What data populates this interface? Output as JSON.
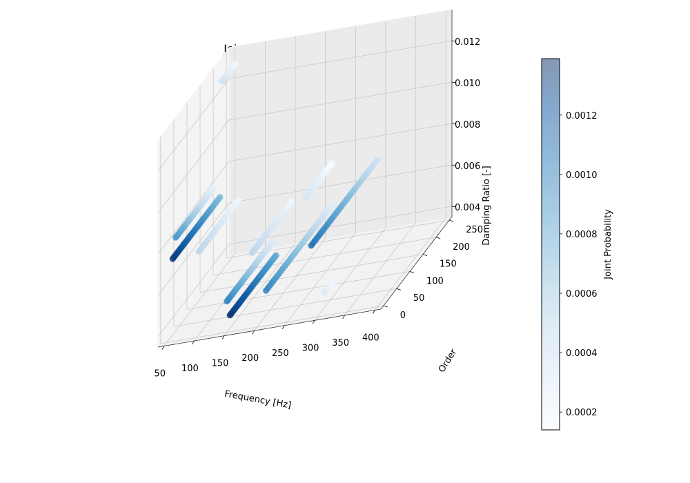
{
  "chart_data": {
    "type": "scatter",
    "title": "Joint Probability Distribution",
    "xlabel": "Frequency [Hz]",
    "ylabel": "Order",
    "zlabel": "Damping Ratio [-]",
    "xlim": [
      40,
      410
    ],
    "ylim": [
      -10,
      260
    ],
    "zlim": [
      0.0035,
      0.0135
    ],
    "xticks": [
      50,
      100,
      150,
      200,
      250,
      300,
      350,
      400
    ],
    "xtick_labels": [
      "50",
      "100",
      "150",
      "200",
      "250",
      "300",
      "350",
      "400"
    ],
    "yticks": [
      0,
      50,
      100,
      150,
      200,
      250
    ],
    "ytick_labels": [
      "0",
      "50",
      "100",
      "150",
      "200",
      "250"
    ],
    "zticks": [
      0.004,
      0.006,
      0.008,
      0.01,
      0.012
    ],
    "ztick_labels": [
      "0.004",
      "0.006",
      "0.008",
      "0.010",
      "0.012"
    ],
    "grid": true,
    "colormap": "Blues",
    "colorbar": {
      "label": "Joint Probability",
      "range": [
        0.00014,
        0.00139
      ],
      "ticks": [
        0.0002,
        0.0004,
        0.0006,
        0.0008,
        0.001,
        0.0012
      ],
      "tick_labels": [
        "0.0002",
        "0.0004",
        "0.0006",
        "0.0008",
        "0.0010",
        "0.0012"
      ]
    },
    "segments": [
      {
        "x": 60,
        "y": [
          0,
          180
        ],
        "z": 0.0075,
        "prob_low": 0.0007,
        "prob_high": 0.00135
      },
      {
        "x": 65,
        "y": [
          0,
          160
        ],
        "z": 0.0085,
        "prob_low": 0.0002,
        "prob_high": 0.0009
      },
      {
        "x": 60,
        "y": [
          100,
          250
        ],
        "z": 0.0062,
        "prob_low": 0.0002,
        "prob_high": 0.0005
      },
      {
        "x": 55,
        "y": [
          200,
          250
        ],
        "z": 0.0128,
        "prob_low": 0.0002,
        "prob_high": 0.0004
      },
      {
        "x": 155,
        "y": [
          0,
          175
        ],
        "z": 0.0043,
        "prob_low": 0.0008,
        "prob_high": 0.00138
      },
      {
        "x": 150,
        "y": [
          0,
          175
        ],
        "z": 0.005,
        "prob_low": 0.0003,
        "prob_high": 0.001
      },
      {
        "x": 148,
        "y": [
          100,
          250
        ],
        "z": 0.0057,
        "prob_low": 0.0002,
        "prob_high": 0.0005
      },
      {
        "x": 215,
        "y": [
          0,
          250
        ],
        "z": 0.0052,
        "prob_low": 0.0003,
        "prob_high": 0.001
      },
      {
        "x": 215,
        "y": [
          150,
          250
        ],
        "z": 0.0072,
        "prob_low": 0.00015,
        "prob_high": 0.00035
      },
      {
        "x": 290,
        "y": [
          0,
          250
        ],
        "z": 0.007,
        "prob_low": 0.0004,
        "prob_high": 0.0011
      },
      {
        "x": 290,
        "y": [
          50,
          80
        ],
        "z": 0.0039,
        "prob_low": 0.0002,
        "prob_high": 0.0003
      }
    ]
  }
}
